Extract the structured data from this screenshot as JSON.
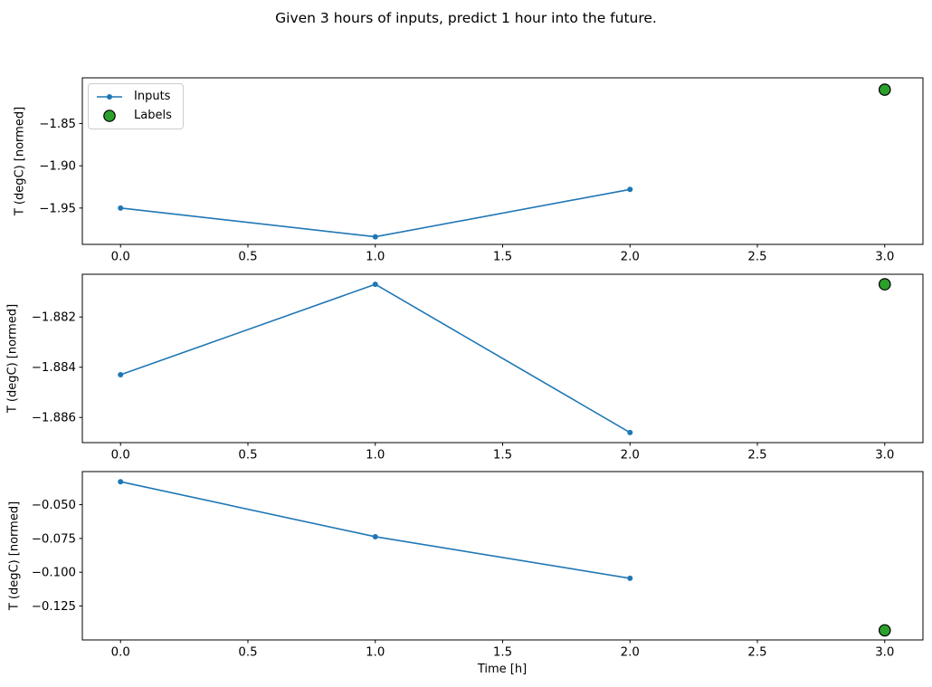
{
  "figure": {
    "title": "Given 3 hours of inputs, predict 1 hour into the future."
  },
  "x_axis": {
    "label": "Time [h]",
    "ticks": [
      0,
      0.5,
      1,
      1.5,
      2,
      2.5,
      3
    ],
    "tick_labels": [
      "0.0",
      "0.5",
      "1.0",
      "1.5",
      "2.0",
      "2.5",
      "3.0"
    ],
    "lim": [
      -0.15,
      3.15
    ]
  },
  "legend": {
    "items": [
      {
        "label": "Inputs",
        "marker": "line-with-dot",
        "color": "#1f77b4"
      },
      {
        "label": "Labels",
        "marker": "filled-circle",
        "color": "#2ca02c"
      }
    ]
  },
  "colors": {
    "inputs_line": "#1f77b4",
    "labels_dot": "#2ca02c",
    "marker_edge": "#000000",
    "axes": "#000000"
  },
  "chart_data": [
    {
      "type": "line",
      "ylabel": "T (degC) [normed]",
      "yticks": [
        -1.85,
        -1.9,
        -1.95
      ],
      "ytick_labels": [
        "−1.85",
        "−1.90",
        "−1.95"
      ],
      "ylim": [
        -1.993,
        -1.796
      ],
      "series": [
        {
          "name": "Inputs",
          "x": [
            0,
            1,
            2
          ],
          "y": [
            -1.95,
            -1.984,
            -1.928
          ]
        },
        {
          "name": "Labels",
          "x": [
            3
          ],
          "y": [
            -1.81
          ]
        }
      ]
    },
    {
      "type": "line",
      "ylabel": "T (degC) [normed]",
      "yticks": [
        -1.882,
        -1.884,
        -1.886
      ],
      "ytick_labels": [
        "−1.882",
        "−1.884",
        "−1.886"
      ],
      "ylim": [
        -1.887,
        -1.8803
      ],
      "series": [
        {
          "name": "Inputs",
          "x": [
            0,
            1,
            2
          ],
          "y": [
            -1.8843,
            -1.8807,
            -1.8866
          ]
        },
        {
          "name": "Labels",
          "x": [
            3
          ],
          "y": [
            -1.8807
          ]
        }
      ]
    },
    {
      "type": "line",
      "ylabel": "T (degC) [normed]",
      "yticks": [
        -0.05,
        -0.075,
        -0.1,
        -0.125
      ],
      "ytick_labels": [
        "−0.050",
        "−0.075",
        "−0.100",
        "−0.125"
      ],
      "ylim": [
        -0.1501,
        -0.0255
      ],
      "series": [
        {
          "name": "Inputs",
          "x": [
            0,
            1,
            2
          ],
          "y": [
            -0.033,
            -0.0737,
            -0.1045
          ]
        },
        {
          "name": "Labels",
          "x": [
            3
          ],
          "y": [
            -0.143
          ]
        }
      ]
    }
  ]
}
